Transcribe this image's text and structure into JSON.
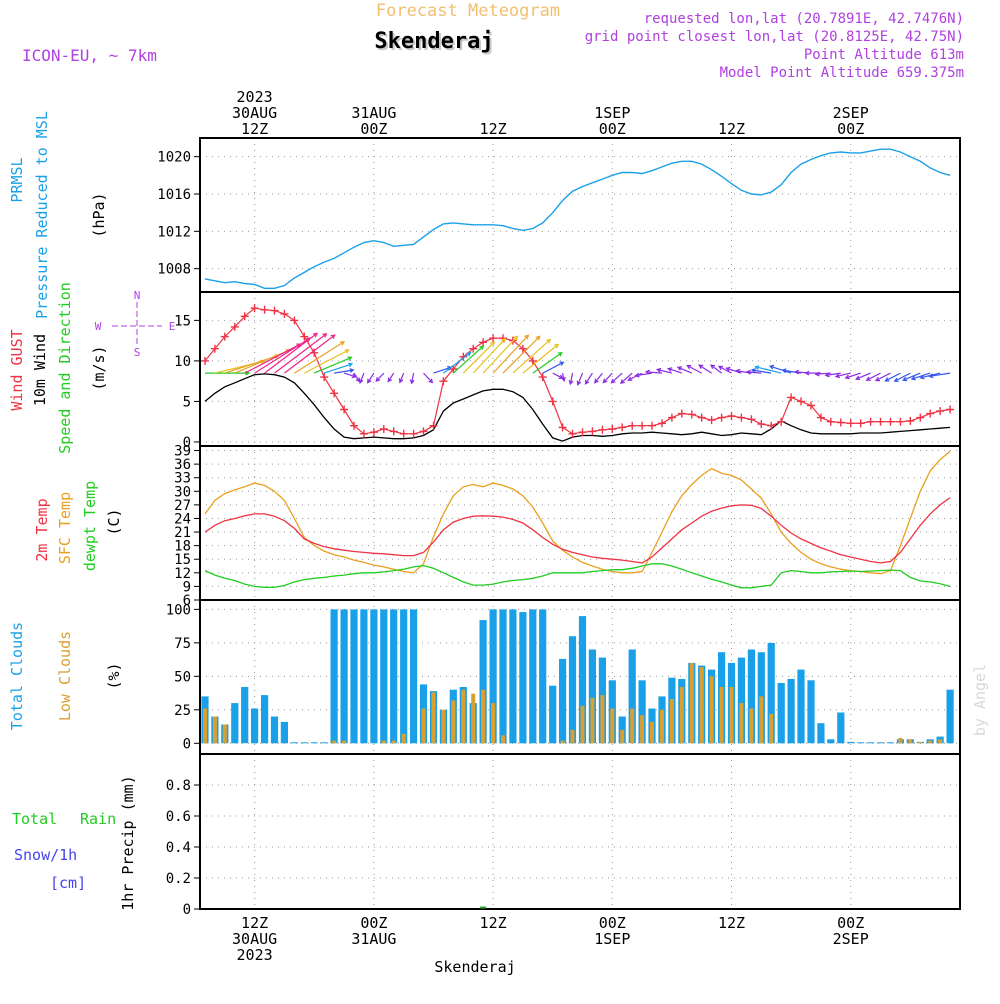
{
  "header": {
    "title_faint": "Forecast Meteogram",
    "location": "Skenderaj",
    "model": "ICON-EU, ~ 7km",
    "requested": "requested lon,lat (20.7891E, 42.7476N)",
    "gridpoint": "grid point closest lon,lat (20.8125E, 42.75N)",
    "point_alt": "Point Altitude 613m",
    "model_alt": "Model Point Altitude 659.375m",
    "footer": "Skenderaj",
    "watermark": "by Angel"
  },
  "time_axis": {
    "top": [
      {
        "t": 0,
        "lines": [
          "2023",
          "30AUG",
          "12Z"
        ]
      },
      {
        "t": 12,
        "lines": [
          "31AUG",
          "00Z"
        ]
      },
      {
        "t": 24,
        "lines": [
          "12Z"
        ]
      },
      {
        "t": 36,
        "lines": [
          "1SEP",
          "00Z"
        ]
      },
      {
        "t": 48,
        "lines": [
          "12Z"
        ]
      },
      {
        "t": 60,
        "lines": [
          "2SEP",
          "00Z"
        ]
      }
    ],
    "bottom": [
      {
        "t": 0,
        "lines": [
          "12Z",
          "30AUG",
          "2023"
        ]
      },
      {
        "t": 12,
        "lines": [
          "00Z",
          "31AUG"
        ]
      },
      {
        "t": 24,
        "lines": [
          "12Z"
        ]
      },
      {
        "t": 36,
        "lines": [
          "00Z",
          "1SEP"
        ]
      },
      {
        "t": 48,
        "lines": [
          "12Z"
        ]
      },
      {
        "t": 60,
        "lines": [
          "00Z",
          "2SEP"
        ]
      }
    ],
    "range_hours": [
      -5.5,
      71
    ]
  },
  "colors": {
    "pressure": "#1aa0e8",
    "gust": "#ee3344",
    "wind": "#000000",
    "t2m": "#ee3344",
    "sfc": "#e8a020",
    "dewpt": "#22cc22",
    "cloud_total": "#1aa0e8",
    "cloud_low": "#d9a030",
    "precip": "#22aa22",
    "header_purple": "#b040e0",
    "title_faint": "#f0c070"
  },
  "chart_data": [
    {
      "type": "line",
      "name": "pressure",
      "labels": [
        "PRMSL",
        "Pressure Reduced to MSL",
        "(hPa)"
      ],
      "ylim": [
        1005.5,
        1022
      ],
      "yticks": [
        1008,
        1012,
        1016,
        1020
      ],
      "x": [
        -5,
        -4,
        -3,
        -2,
        -1,
        0,
        1,
        2,
        3,
        4,
        5,
        6,
        7,
        8,
        9,
        10,
        11,
        12,
        13,
        14,
        15,
        16,
        17,
        18,
        19,
        20,
        21,
        22,
        23,
        24,
        25,
        26,
        27,
        28,
        29,
        30,
        31,
        32,
        33,
        34,
        35,
        36,
        37,
        38,
        39,
        40,
        41,
        42,
        43,
        44,
        45,
        46,
        47,
        48,
        49,
        50,
        51,
        52,
        53,
        54,
        55,
        56,
        57,
        58,
        59,
        60,
        61,
        62,
        63,
        64,
        65,
        66,
        67,
        68,
        69,
        70
      ],
      "values": [
        1006.9,
        1006.7,
        1006.5,
        1006.6,
        1006.4,
        1006.3,
        1005.9,
        1005.9,
        1006.2,
        1007.0,
        1007.6,
        1008.2,
        1008.7,
        1009.1,
        1009.7,
        1010.3,
        1010.8,
        1011.0,
        1010.8,
        1010.4,
        1010.5,
        1010.6,
        1011.4,
        1012.2,
        1012.8,
        1012.9,
        1012.8,
        1012.7,
        1012.7,
        1012.7,
        1012.6,
        1012.3,
        1012.1,
        1012.3,
        1012.9,
        1014.0,
        1015.3,
        1016.3,
        1016.8,
        1017.2,
        1017.6,
        1018.0,
        1018.3,
        1018.3,
        1018.2,
        1018.5,
        1018.9,
        1019.3,
        1019.5,
        1019.5,
        1019.2,
        1018.6,
        1017.9,
        1017.1,
        1016.4,
        1016.0,
        1015.9,
        1016.2,
        1017.0,
        1018.3,
        1019.2,
        1019.7,
        1020.1,
        1020.4,
        1020.5,
        1020.4,
        1020.4,
        1020.6,
        1020.8,
        1020.8,
        1020.5,
        1020.0,
        1019.5,
        1018.8,
        1018.3,
        1018.0
      ]
    },
    {
      "type": "line",
      "name": "wind",
      "labels": [
        "Wind GUST",
        "10m Wind",
        "Speed and Direction",
        "(m/s)"
      ],
      "compass": {
        "n": "N",
        "s": "S",
        "w": "W",
        "e": "E"
      },
      "ylim": [
        -0.5,
        18.5
      ],
      "yticks": [
        0,
        5,
        10,
        15
      ],
      "x": [
        -5,
        -4,
        -3,
        -2,
        -1,
        0,
        1,
        2,
        3,
        4,
        5,
        6,
        7,
        8,
        9,
        10,
        11,
        12,
        13,
        14,
        15,
        16,
        17,
        18,
        19,
        20,
        21,
        22,
        23,
        24,
        25,
        26,
        27,
        28,
        29,
        30,
        31,
        32,
        33,
        34,
        35,
        36,
        37,
        38,
        39,
        40,
        41,
        42,
        43,
        44,
        45,
        46,
        47,
        48,
        49,
        50,
        51,
        52,
        53,
        54,
        55,
        56,
        57,
        58,
        59,
        60,
        61,
        62,
        63,
        64,
        65,
        66,
        67,
        68,
        69,
        70
      ],
      "gust": [
        10.0,
        11.5,
        13.0,
        14.2,
        15.5,
        16.5,
        16.3,
        16.2,
        15.8,
        15.0,
        13.0,
        11.0,
        8.0,
        6.0,
        4.0,
        2.0,
        1.0,
        1.2,
        1.6,
        1.3,
        1.0,
        1.0,
        1.3,
        2.0,
        7.5,
        9.0,
        10.5,
        11.5,
        12.3,
        12.8,
        12.8,
        12.5,
        11.5,
        10.0,
        8.0,
        5.0,
        1.8,
        1.0,
        1.2,
        1.3,
        1.5,
        1.6,
        1.8,
        2.0,
        2.0,
        2.0,
        2.3,
        3.0,
        3.5,
        3.4,
        3.0,
        2.7,
        3.0,
        3.2,
        3.0,
        2.8,
        2.2,
        2.0,
        2.5,
        5.5,
        5.0,
        4.5,
        3.0,
        2.5,
        2.4,
        2.3,
        2.3,
        2.5,
        2.5,
        2.5,
        2.5,
        2.6,
        3.0,
        3.5,
        3.8,
        4.0
      ],
      "speed": [
        5.0,
        6.0,
        6.8,
        7.3,
        7.8,
        8.3,
        8.4,
        8.3,
        8.0,
        7.3,
        6.0,
        4.6,
        3.0,
        1.6,
        0.6,
        0.4,
        0.5,
        0.6,
        0.5,
        0.4,
        0.4,
        0.5,
        0.8,
        1.5,
        3.8,
        4.8,
        5.3,
        5.8,
        6.3,
        6.5,
        6.5,
        6.2,
        5.5,
        4.0,
        2.2,
        0.5,
        0.1,
        0.6,
        0.8,
        0.8,
        0.7,
        0.8,
        1.0,
        1.1,
        1.1,
        1.2,
        1.1,
        1.0,
        0.9,
        1.0,
        1.2,
        1.0,
        0.8,
        0.9,
        1.1,
        1.0,
        0.9,
        1.6,
        2.6,
        2.0,
        1.5,
        1.1,
        1.0,
        1.0,
        1.0,
        1.0,
        1.1,
        1.1,
        1.1,
        1.2,
        1.3,
        1.4,
        1.5,
        1.6,
        1.7,
        1.8
      ],
      "dir_from_deg": [
        270,
        255,
        250,
        245,
        240,
        235,
        230,
        230,
        230,
        235,
        240,
        245,
        250,
        260,
        290,
        330,
        20,
        30,
        40,
        30,
        20,
        10,
        320,
        250,
        230,
        225,
        222,
        220,
        220,
        220,
        222,
        225,
        228,
        232,
        240,
        300,
        350,
        10,
        20,
        30,
        35,
        40,
        45,
        45,
        60,
        80,
        95,
        105,
        110,
        115,
        120,
        125,
        130,
        120,
        110,
        100,
        95,
        100,
        105,
        110,
        100,
        95,
        90,
        85,
        80,
        75,
        70,
        65,
        60,
        60,
        60,
        60,
        65,
        70,
        75,
        80
      ]
    },
    {
      "type": "line",
      "name": "temperature",
      "labels": [
        "2m Temp",
        "SFC Temp",
        "dewpt Temp",
        "(C)"
      ],
      "ylim": [
        6,
        40
      ],
      "yticks": [
        6,
        9,
        12,
        15,
        18,
        21,
        24,
        27,
        30,
        33,
        36,
        39
      ],
      "x": [
        -5,
        -4,
        -3,
        -2,
        -1,
        0,
        1,
        2,
        3,
        4,
        5,
        6,
        7,
        8,
        9,
        10,
        11,
        12,
        13,
        14,
        15,
        16,
        17,
        18,
        19,
        20,
        21,
        22,
        23,
        24,
        25,
        26,
        27,
        28,
        29,
        30,
        31,
        32,
        33,
        34,
        35,
        36,
        37,
        38,
        39,
        40,
        41,
        42,
        43,
        44,
        45,
        46,
        47,
        48,
        49,
        50,
        51,
        52,
        53,
        54,
        55,
        56,
        57,
        58,
        59,
        60,
        61,
        62,
        63,
        64,
        65,
        66,
        67,
        68,
        69,
        70
      ],
      "t2m": [
        21.0,
        22.5,
        23.5,
        24.0,
        24.6,
        25.0,
        25.0,
        24.5,
        23.5,
        21.8,
        19.5,
        18.5,
        17.8,
        17.3,
        17.0,
        16.7,
        16.5,
        16.3,
        16.2,
        16.0,
        15.8,
        15.8,
        16.5,
        18.8,
        21.5,
        23.2,
        24.0,
        24.5,
        24.6,
        24.5,
        24.3,
        23.8,
        23.0,
        21.5,
        19.8,
        18.3,
        17.2,
        16.5,
        16.0,
        15.5,
        15.2,
        15.0,
        14.8,
        14.5,
        14.2,
        15.5,
        17.5,
        19.5,
        21.5,
        23.0,
        24.5,
        25.6,
        26.3,
        26.8,
        27.0,
        26.9,
        26.2,
        24.5,
        22.5,
        20.8,
        19.5,
        18.5,
        17.5,
        16.8,
        16.0,
        15.5,
        15.0,
        14.5,
        14.2,
        14.5,
        16.5,
        19.5,
        22.5,
        25.0,
        27.0,
        28.6
      ],
      "sfc": [
        25.0,
        28.0,
        29.5,
        30.3,
        31.0,
        31.8,
        31.3,
        30.0,
        28.0,
        24.0,
        19.8,
        18.0,
        16.8,
        16.0,
        15.5,
        14.8,
        14.3,
        13.7,
        13.3,
        12.8,
        12.3,
        12.0,
        14.0,
        20.0,
        25.0,
        29.0,
        31.0,
        31.5,
        31.0,
        31.8,
        31.3,
        30.5,
        29.0,
        26.5,
        23.0,
        19.0,
        17.0,
        15.5,
        14.3,
        13.5,
        12.8,
        12.3,
        12.0,
        12.0,
        12.3,
        16.5,
        21.0,
        25.5,
        29.0,
        31.5,
        33.5,
        35.0,
        34.0,
        33.5,
        32.5,
        30.5,
        28.5,
        25.0,
        21.0,
        18.5,
        16.5,
        15.0,
        14.0,
        13.3,
        12.8,
        12.5,
        12.3,
        12.0,
        11.8,
        12.5,
        18.0,
        24.0,
        30.0,
        34.5,
        37.0,
        38.8
      ],
      "dewpt": [
        12.5,
        11.5,
        10.8,
        10.3,
        9.5,
        9.0,
        8.8,
        8.8,
        9.2,
        10.0,
        10.5,
        10.8,
        11.0,
        11.3,
        11.5,
        11.8,
        12.0,
        12.0,
        12.2,
        12.5,
        12.8,
        13.3,
        13.6,
        13.0,
        12.0,
        11.0,
        10.0,
        9.3,
        9.3,
        9.5,
        10.0,
        10.3,
        10.5,
        10.8,
        11.3,
        12.0,
        12.0,
        12.0,
        12.0,
        12.3,
        12.5,
        12.7,
        12.7,
        13.0,
        13.5,
        14.0,
        14.0,
        13.5,
        12.8,
        12.0,
        11.3,
        10.6,
        10.0,
        9.3,
        8.7,
        8.7,
        9.0,
        9.3,
        12.0,
        12.5,
        12.3,
        12.0,
        12.0,
        12.2,
        12.3,
        12.4,
        12.3,
        12.4,
        12.5,
        12.6,
        12.5,
        11.0,
        10.2,
        10.0,
        9.6,
        9.0
      ]
    },
    {
      "type": "bar",
      "name": "clouds",
      "labels": [
        "Total Clouds",
        "Low Clouds",
        "(%)"
      ],
      "ylim": [
        -8,
        107
      ],
      "yticks": [
        0,
        25,
        50,
        75,
        100
      ],
      "x": [
        -5,
        -4,
        -3,
        -2,
        -1,
        0,
        1,
        2,
        3,
        4,
        5,
        6,
        7,
        8,
        9,
        10,
        11,
        12,
        13,
        14,
        15,
        16,
        17,
        18,
        19,
        20,
        21,
        22,
        23,
        24,
        25,
        26,
        27,
        28,
        29,
        30,
        31,
        32,
        33,
        34,
        35,
        36,
        37,
        38,
        39,
        40,
        41,
        42,
        43,
        44,
        45,
        46,
        47,
        48,
        49,
        50,
        51,
        52,
        53,
        54,
        55,
        56,
        57,
        58,
        59,
        60,
        61,
        62,
        63,
        64,
        65,
        66,
        67,
        68,
        69,
        70
      ],
      "total": [
        35,
        20,
        14,
        30,
        42,
        26,
        36,
        20,
        16,
        0,
        0,
        0,
        0,
        100,
        100,
        100,
        100,
        100,
        100,
        100,
        100,
        100,
        44,
        39,
        25,
        40,
        42,
        30,
        92,
        100,
        100,
        100,
        98,
        100,
        100,
        43,
        63,
        80,
        95,
        70,
        64,
        47,
        20,
        70,
        47,
        26,
        35,
        49,
        48,
        60,
        58,
        55,
        68,
        60,
        64,
        70,
        68,
        75,
        45,
        48,
        55,
        47,
        15,
        3,
        23,
        1,
        0,
        0,
        0,
        0,
        3,
        3,
        1,
        3,
        5,
        40
      ],
      "low": [
        26,
        20,
        14,
        0,
        0,
        0,
        0,
        0,
        0,
        0,
        0,
        0,
        0,
        2,
        2,
        0,
        0,
        0,
        2,
        2,
        7,
        0,
        26,
        38,
        25,
        32,
        40,
        37,
        40,
        30,
        6,
        0,
        0,
        0,
        0,
        0,
        2,
        10,
        28,
        34,
        36,
        26,
        10,
        26,
        21,
        16,
        25,
        33,
        42,
        60,
        57,
        50,
        42,
        42,
        30,
        26,
        35,
        22,
        0,
        0,
        0,
        0,
        0,
        0,
        0,
        0,
        0,
        0,
        0,
        0,
        4,
        3,
        1,
        2,
        3,
        0
      ]
    },
    {
      "type": "bar",
      "name": "precip",
      "labels": [
        "Total",
        "Rain",
        "Snow/1h",
        "[cm]",
        "1hr Precip (mm)"
      ],
      "ylim": [
        0,
        1.0
      ],
      "yticks": [
        0,
        0.2,
        0.4,
        0.6,
        0.8
      ],
      "ytick_labels": [
        "0",
        "0.2",
        "0.4",
        "0.6",
        "0.8"
      ],
      "x": [
        -5,
        -4,
        -3,
        -2,
        -1,
        0,
        1,
        2,
        3,
        4,
        5,
        6,
        7,
        8,
        9,
        10,
        11,
        12,
        13,
        14,
        15,
        16,
        17,
        18,
        19,
        20,
        21,
        22,
        23,
        24,
        25,
        26,
        27,
        28,
        29,
        30,
        31,
        32,
        33,
        34,
        35,
        36,
        37,
        38,
        39,
        40,
        41,
        42,
        43,
        44,
        45,
        46,
        47,
        48,
        49,
        50,
        51,
        52,
        53,
        54,
        55,
        56,
        57,
        58,
        59,
        60,
        61,
        62,
        63,
        64,
        65,
        66,
        67,
        68,
        69,
        70
      ],
      "values": [
        0,
        0,
        0,
        0,
        0,
        0,
        0,
        0,
        0,
        0,
        0,
        0,
        0,
        0,
        0,
        0,
        0,
        0,
        0,
        0,
        0,
        0,
        0,
        0,
        0,
        0,
        0,
        0,
        0.01,
        0,
        0,
        0,
        0,
        0,
        0,
        0,
        0,
        0,
        0,
        0,
        0,
        0,
        0,
        0,
        0,
        0,
        0,
        0,
        0,
        0,
        0,
        0,
        0,
        0,
        0,
        0,
        0,
        0,
        0,
        0,
        0,
        0,
        0,
        0,
        0,
        0,
        0,
        0,
        0,
        0,
        0,
        0,
        0,
        0,
        0,
        0
      ]
    }
  ]
}
